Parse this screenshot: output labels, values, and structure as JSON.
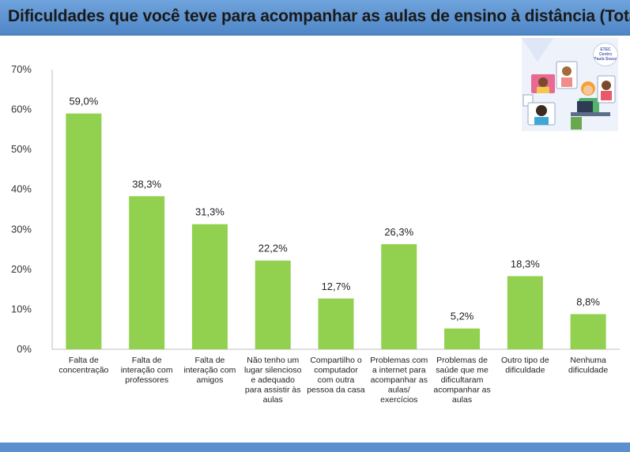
{
  "header": {
    "title": "Dificuldades que você teve para acompanhar as aulas de ensino à distância (Total)"
  },
  "illustration": {
    "icon": "online-class-illustration",
    "logo_text": "Centro Paula Souza"
  },
  "colors": {
    "header": "#5b8fd0",
    "bar": "#92d050",
    "gridline": "#d9d9d9"
  },
  "chart_data": {
    "type": "bar",
    "title": "",
    "xlabel": "",
    "ylabel": "",
    "ylim": [
      0,
      70
    ],
    "yticks": [
      "0%",
      "10%",
      "20%",
      "30%",
      "40%",
      "50%",
      "60%",
      "70%"
    ],
    "grid": false,
    "categories": [
      [
        "Falta de",
        "concentração"
      ],
      [
        "Falta de",
        "interação com",
        "professores"
      ],
      [
        "Falta de",
        "interação com",
        "amigos"
      ],
      [
        "Não tenho um",
        "lugar silencioso",
        "e adequado",
        "para assistir às",
        "aulas"
      ],
      [
        "Compartilho o",
        "computador",
        "com outra",
        "pessoa da casa"
      ],
      [
        "Problemas com",
        "a internet para",
        "acompanhar as",
        "aulas/",
        "exercícios"
      ],
      [
        "Problemas de",
        "saúde que me",
        "dificultaram",
        "acompanhar as",
        "aulas"
      ],
      [
        "Outro tipo de",
        "dificuldade"
      ],
      [
        "Nenhuma",
        "dificuldade"
      ]
    ],
    "values": [
      59.0,
      38.3,
      31.3,
      22.2,
      12.7,
      26.3,
      5.2,
      18.3,
      8.8
    ],
    "data_labels": [
      "59,0%",
      "38,3%",
      "31,3%",
      "22,2%",
      "12,7%",
      "26,3%",
      "5,2%",
      "18,3%",
      "8,8%"
    ]
  }
}
